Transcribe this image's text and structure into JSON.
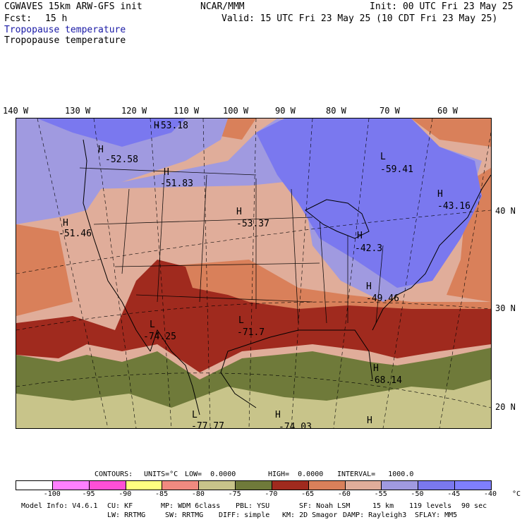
{
  "header": {
    "model": "CGWAVES 15km ARW-GFS init",
    "org": "NCAR/MMM",
    "init": "Init: 00 UTC Fri 23 May 25",
    "fcst_label": "Fcst:",
    "fcst_value": "15 h",
    "valid": "Valid: 15 UTC Fri 23 May 25 (10 CDT Fri 23 May 25)",
    "field_blue": "Tropopause temperature",
    "field_black": "Tropopause temperature"
  },
  "longitude_labels": [
    "140 W",
    "130 W",
    "120 W",
    "110 W",
    "100 W",
    "90 W",
    "80 W",
    "70 W",
    "60 W"
  ],
  "latitude_labels": [
    "40 N",
    "30 N",
    "20 N"
  ],
  "map_labels": [
    {
      "type": "H",
      "value": "-53.18"
    },
    {
      "type": "H",
      "value": "-52.58"
    },
    {
      "type": "H",
      "value": "-51.83"
    },
    {
      "type": "H",
      "value": "-51.46"
    },
    {
      "type": "H",
      "value": "-53.37"
    },
    {
      "type": "L",
      "value": "-59.41"
    },
    {
      "type": "H",
      "value": "-43.16"
    },
    {
      "type": "H",
      "value": "-42.3"
    },
    {
      "type": "H",
      "value": "-49.46"
    },
    {
      "type": "L",
      "value": "-74.25"
    },
    {
      "type": "L",
      "value": "-71.7"
    },
    {
      "type": "H",
      "value": "-68.14"
    },
    {
      "type": "L",
      "value": "-77.77"
    },
    {
      "type": "H",
      "value": "-74.03"
    },
    {
      "type": "H",
      "value": ""
    }
  ],
  "contours": {
    "label": "CONTOURS:",
    "units": "UNITS=°C",
    "low": "LOW=  0.0000",
    "high": "HIGH=  0.0000",
    "interval": "INTERVAL=   1000.0"
  },
  "legend": {
    "colors": [
      "#ffffff",
      "#ff80ff",
      "#ff4fd6",
      "#ffff80",
      "#f08a80",
      "#c8c48a",
      "#6f7a3a",
      "#a02a1e",
      "#d9805a",
      "#e0ad9a",
      "#a09ae0",
      "#7a78ef",
      "#7f7ffe"
    ],
    "tick_labels": [
      "-100",
      "-95",
      "-90",
      "-85",
      "-80",
      "-75",
      "-70",
      "-65",
      "-60",
      "-55",
      "-50",
      "-45",
      "-40",
      "°C"
    ]
  },
  "footer": {
    "line1": [
      "Model Info: V4.6.1",
      "CU: KF",
      "MP: WDM 6class",
      "PBL: YSU",
      "SF: Noah LSM",
      "15 km",
      "119 levels",
      "90 sec"
    ],
    "line2": [
      "LW: RRTMG",
      "SW: RRTMG",
      "DIFF: simple",
      "KM: 2D Smagor",
      "DAMP: Rayleigh3",
      "SFLAY: MM5"
    ]
  }
}
